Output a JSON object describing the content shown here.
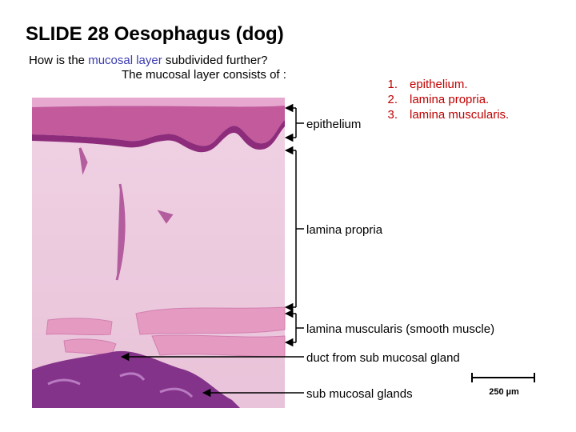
{
  "title": "SLIDE 28 Oesophagus  (dog)",
  "question": {
    "before": "How is the",
    "highlight": "mucosal layer",
    "after": "subdivided further?"
  },
  "subtitle": "The mucosal layer consists of :",
  "list": [
    {
      "number": "1.",
      "text": "epithelium."
    },
    {
      "number": "2.",
      "text": "lamina propria."
    },
    {
      "number": "3.",
      "text": "lamina muscularis."
    }
  ],
  "labels": {
    "epithelium": "epithelium",
    "lamina_propria": "lamina propria",
    "lamina_muscularis": "lamina muscularis (smooth muscle)",
    "duct": "duct from sub mucosal gland",
    "glands": "sub mucosal glands"
  },
  "scale_bar": "250 µm"
}
